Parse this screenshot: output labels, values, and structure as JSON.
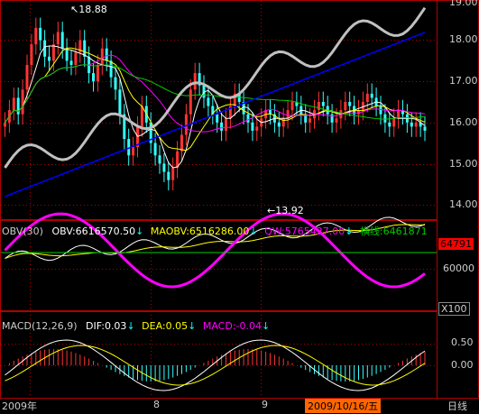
{
  "price_panel": {
    "high_marker": "18.88",
    "low_marker": "13.92",
    "y_ticks": [
      "19.00",
      "18.00",
      "17.00",
      "16.00",
      "15.00",
      "14.00"
    ]
  },
  "obv_panel": {
    "title": "OBV(30)",
    "obv_label": "OBV:6616570.50",
    "maobv_label": "MAOBV:6516286.00",
    "qw_label": "QW:5765427.00",
    "extra_label": "横线:6461871",
    "current_badge": "64791",
    "y_tick": "60000",
    "scale_label": "X100"
  },
  "macd_panel": {
    "title": "MACD(12,26,9)",
    "dif_label": "DIF:0.03",
    "dea_label": "DEA:0.05",
    "macd_label": "MACD:-0.04",
    "y_ticks": [
      "0.50",
      "0.00"
    ]
  },
  "x_axis": {
    "labels": [
      "2009年",
      "8",
      "9"
    ],
    "cursor_date": "2009/10/16/五",
    "period": "日线"
  },
  "colors": {
    "background": "#000000",
    "up_candle": "#ff3333",
    "down_candle": "#33ffff",
    "obv_line": "#ffffff",
    "maobv_line": "#ffff00",
    "qw_line": "#ff00ff",
    "horizontal_line": "#00cc00",
    "dif_line": "#ffffff",
    "dea_line": "#ffff00",
    "macd_hist": "#ff00ff",
    "badge_bg": "#ff0000",
    "cursor_bg": "#ff6600",
    "ma_long": "#0000ff",
    "ma_mid": "#00cc00",
    "ma_gray": "#c0c0c0"
  }
}
